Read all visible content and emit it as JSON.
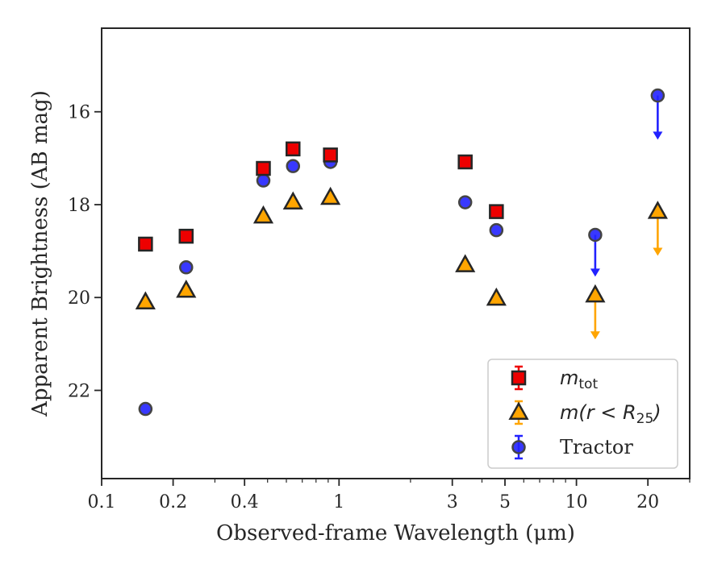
{
  "chart_data": {
    "type": "scatter",
    "title": "",
    "xlabel": "Observed-frame Wavelength (μm)",
    "ylabel": "Apparent Brightness (AB mag)",
    "x_scale": "log",
    "xlim": [
      0.1,
      30
    ],
    "ylim": [
      23.9,
      14.2
    ],
    "y_inverted": true,
    "grid": false,
    "legend_position": "lower-right",
    "x_ticks": [
      {
        "value": 0.1,
        "label": "0.1"
      },
      {
        "value": 0.2,
        "label": "0.2"
      },
      {
        "value": 0.4,
        "label": "0.4"
      },
      {
        "value": 1,
        "label": "1"
      },
      {
        "value": 3,
        "label": "3"
      },
      {
        "value": 5,
        "label": "5"
      },
      {
        "value": 10,
        "label": "10"
      },
      {
        "value": 20,
        "label": "20"
      }
    ],
    "y_ticks": [
      {
        "value": 16,
        "label": "16"
      },
      {
        "value": 18,
        "label": "18"
      },
      {
        "value": 20,
        "label": "20"
      },
      {
        "value": 22,
        "label": "22"
      }
    ],
    "series": [
      {
        "name": "m_tot",
        "legend_main": "m",
        "legend_sub": "tot",
        "marker": "square",
        "color": "#ee0000",
        "points": [
          {
            "x": 0.153,
            "y": 18.85
          },
          {
            "x": 0.227,
            "y": 18.68
          },
          {
            "x": 0.48,
            "y": 17.22
          },
          {
            "x": 0.64,
            "y": 16.8
          },
          {
            "x": 0.92,
            "y": 16.93
          },
          {
            "x": 3.4,
            "y": 17.08
          },
          {
            "x": 4.6,
            "y": 18.15
          }
        ]
      },
      {
        "name": "m(r < R25)",
        "legend_main": "m(r < R",
        "legend_sub": "25",
        "legend_tail": ")",
        "marker": "triangle",
        "color": "#ffa500",
        "points": [
          {
            "x": 0.153,
            "y": 20.1
          },
          {
            "x": 0.227,
            "y": 19.85
          },
          {
            "x": 0.48,
            "y": 18.25
          },
          {
            "x": 0.64,
            "y": 17.95
          },
          {
            "x": 0.92,
            "y": 17.85
          },
          {
            "x": 3.4,
            "y": 19.3
          },
          {
            "x": 4.6,
            "y": 20.02
          },
          {
            "x": 12,
            "y": 19.95,
            "upper_limit": true,
            "limit_to": 20.85
          },
          {
            "x": 22,
            "y": 18.15,
            "upper_limit": true,
            "limit_to": 19.05
          }
        ]
      },
      {
        "name": "Tractor",
        "legend_main": "Tractor",
        "marker": "circle",
        "color": "#2222ff",
        "points": [
          {
            "x": 0.153,
            "y": 22.4
          },
          {
            "x": 0.227,
            "y": 19.35
          },
          {
            "x": 0.48,
            "y": 17.48
          },
          {
            "x": 0.64,
            "y": 17.17
          },
          {
            "x": 0.92,
            "y": 17.08
          },
          {
            "x": 3.4,
            "y": 17.95
          },
          {
            "x": 4.6,
            "y": 18.55
          },
          {
            "x": 12,
            "y": 18.65,
            "upper_limit": true,
            "limit_to": 19.5
          },
          {
            "x": 22,
            "y": 15.65,
            "upper_limit": true,
            "limit_to": 16.55
          }
        ]
      }
    ]
  }
}
